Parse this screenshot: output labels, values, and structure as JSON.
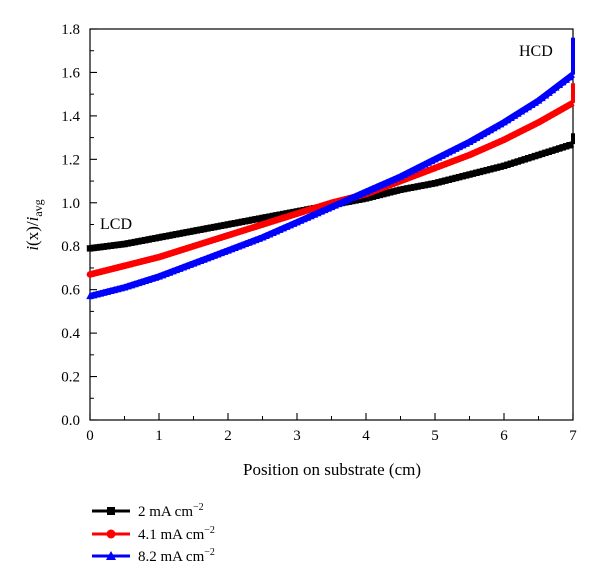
{
  "chart_data": {
    "type": "line",
    "title": "",
    "xlabel": "Position on substrate (cm)",
    "ylabel_parts": {
      "i": "i",
      "x": "(x)",
      "slash": "/",
      "i2": "i",
      "sub": "avg"
    },
    "xlim": [
      0,
      7
    ],
    "ylim": [
      0,
      1.8
    ],
    "xticks": [
      "0",
      "1",
      "2",
      "3",
      "4",
      "5",
      "6",
      "7"
    ],
    "yticks": [
      "0.0",
      "0.2",
      "0.4",
      "0.6",
      "0.8",
      "1.0",
      "1.2",
      "1.4",
      "1.6",
      "1.8"
    ],
    "grid": false,
    "legend_position": "bottom-left, below plot",
    "annotations": {
      "lcd": "LCD",
      "hcd": "HCD"
    },
    "series": [
      {
        "name": "2 mA cm⁻²",
        "legend": {
          "value": "2",
          "unit": "mA cm",
          "exp": "−2"
        },
        "color": "#000000",
        "marker": "square",
        "x": [
          0,
          0.5,
          1,
          1.5,
          2,
          2.5,
          3,
          3.5,
          4,
          4.5,
          5,
          5.5,
          6,
          6.5,
          7
        ],
        "y": [
          0.79,
          0.81,
          0.84,
          0.87,
          0.9,
          0.93,
          0.96,
          0.99,
          1.02,
          1.06,
          1.09,
          1.13,
          1.17,
          1.22,
          1.27
        ],
        "end_spike": 1.32
      },
      {
        "name": "4.1 mA cm⁻²",
        "legend": {
          "value": "4.1",
          "unit": "mA cm",
          "exp": "−2"
        },
        "color": "#ff0000",
        "marker": "circle",
        "x": [
          0,
          0.5,
          1,
          1.5,
          2,
          2.5,
          3,
          3.5,
          4,
          4.5,
          5,
          5.5,
          6,
          6.5,
          7
        ],
        "y": [
          0.67,
          0.71,
          0.75,
          0.8,
          0.85,
          0.9,
          0.95,
          1.0,
          1.04,
          1.1,
          1.16,
          1.22,
          1.29,
          1.37,
          1.46
        ],
        "end_spike": 1.55
      },
      {
        "name": "8.2 mA cm⁻²",
        "legend": {
          "value": "8.2",
          "unit": "mA cm",
          "exp": "−2"
        },
        "color": "#0000ff",
        "marker": "triangle",
        "x": [
          0,
          0.5,
          1,
          1.5,
          2,
          2.5,
          3,
          3.5,
          4,
          4.5,
          5,
          5.5,
          6,
          6.5,
          7
        ],
        "y": [
          0.57,
          0.61,
          0.66,
          0.72,
          0.78,
          0.84,
          0.91,
          0.98,
          1.05,
          1.12,
          1.2,
          1.28,
          1.37,
          1.47,
          1.59
        ],
        "end_spike": 1.76
      }
    ]
  }
}
